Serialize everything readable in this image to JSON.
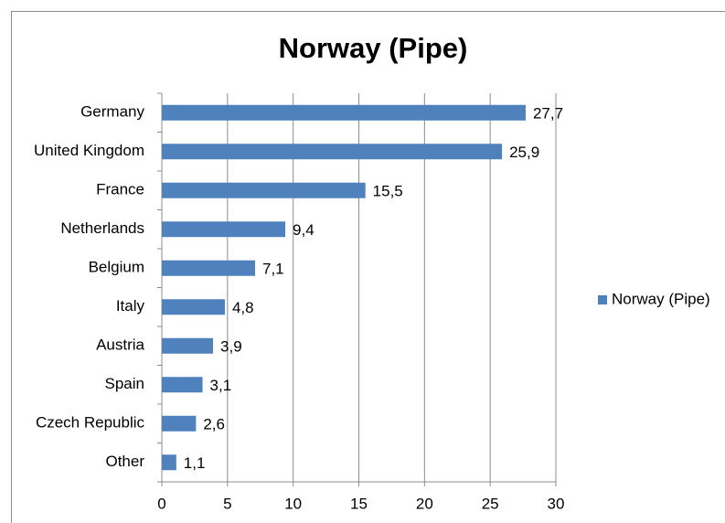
{
  "chart_data": {
    "type": "bar",
    "orientation": "horizontal",
    "title": "Norway (Pipe)",
    "categories": [
      "Germany",
      "United Kingdom",
      "France",
      "Netherlands",
      "Belgium",
      "Italy",
      "Austria",
      "Spain",
      "Czech Republic",
      "Other"
    ],
    "series": [
      {
        "name": "Norway (Pipe)",
        "color": "#4f81bd",
        "values": [
          27.7,
          25.9,
          15.5,
          9.4,
          7.1,
          4.8,
          3.9,
          3.1,
          2.6,
          1.1
        ],
        "value_labels": [
          "27,7",
          "25,9",
          "15,5",
          "9,4",
          "7,1",
          "4,8",
          "3,9",
          "3,1",
          "2,6",
          "1,1"
        ]
      }
    ],
    "xlim": [
      0,
      30
    ],
    "xticks": [
      0,
      5,
      10,
      15,
      20,
      25,
      30
    ],
    "grid": true,
    "legend": "right"
  }
}
